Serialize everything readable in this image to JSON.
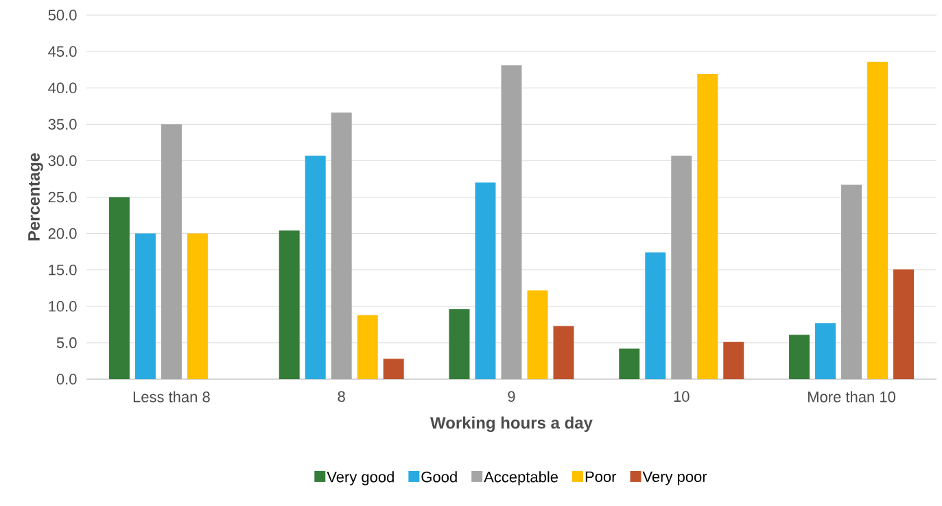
{
  "chart_data": {
    "type": "bar",
    "xlabel": "Working hours a day",
    "ylabel": "Percentage",
    "categories": [
      "Less than 8",
      "8",
      "9",
      "10",
      "More than 10"
    ],
    "series": [
      {
        "name": "Very good",
        "color": "#347d39",
        "values": [
          25.0,
          20.4,
          9.6,
          4.2,
          6.1
        ]
      },
      {
        "name": "Good",
        "color": "#29abe2",
        "values": [
          20.0,
          30.7,
          27.0,
          17.4,
          7.7
        ]
      },
      {
        "name": "Acceptable",
        "color": "#a5a5a5",
        "values": [
          35.0,
          36.6,
          43.1,
          30.7,
          26.7
        ]
      },
      {
        "name": "Poor",
        "color": "#ffc000",
        "values": [
          20.0,
          8.8,
          12.2,
          41.9,
          43.6
        ]
      },
      {
        "name": "Very poor",
        "color": "#c0522b",
        "values": [
          0,
          2.8,
          7.3,
          5.1,
          15.1
        ]
      }
    ],
    "ylim": [
      0,
      50
    ],
    "yticks": [
      {
        "value": 0,
        "label": "0.0"
      },
      {
        "value": 5,
        "label": "5.0"
      },
      {
        "value": 10,
        "label": "10.0"
      },
      {
        "value": 15,
        "label": "15.0"
      },
      {
        "value": 20,
        "label": "20.0"
      },
      {
        "value": 25,
        "label": "25.0"
      },
      {
        "value": 30,
        "label": "30.0"
      },
      {
        "value": 35,
        "label": "35.0"
      },
      {
        "value": 40,
        "label": "40.0"
      },
      {
        "value": 45,
        "label": "45.0"
      },
      {
        "value": 50,
        "label": "50.0"
      }
    ],
    "grid": "y",
    "legend": "bottom"
  }
}
